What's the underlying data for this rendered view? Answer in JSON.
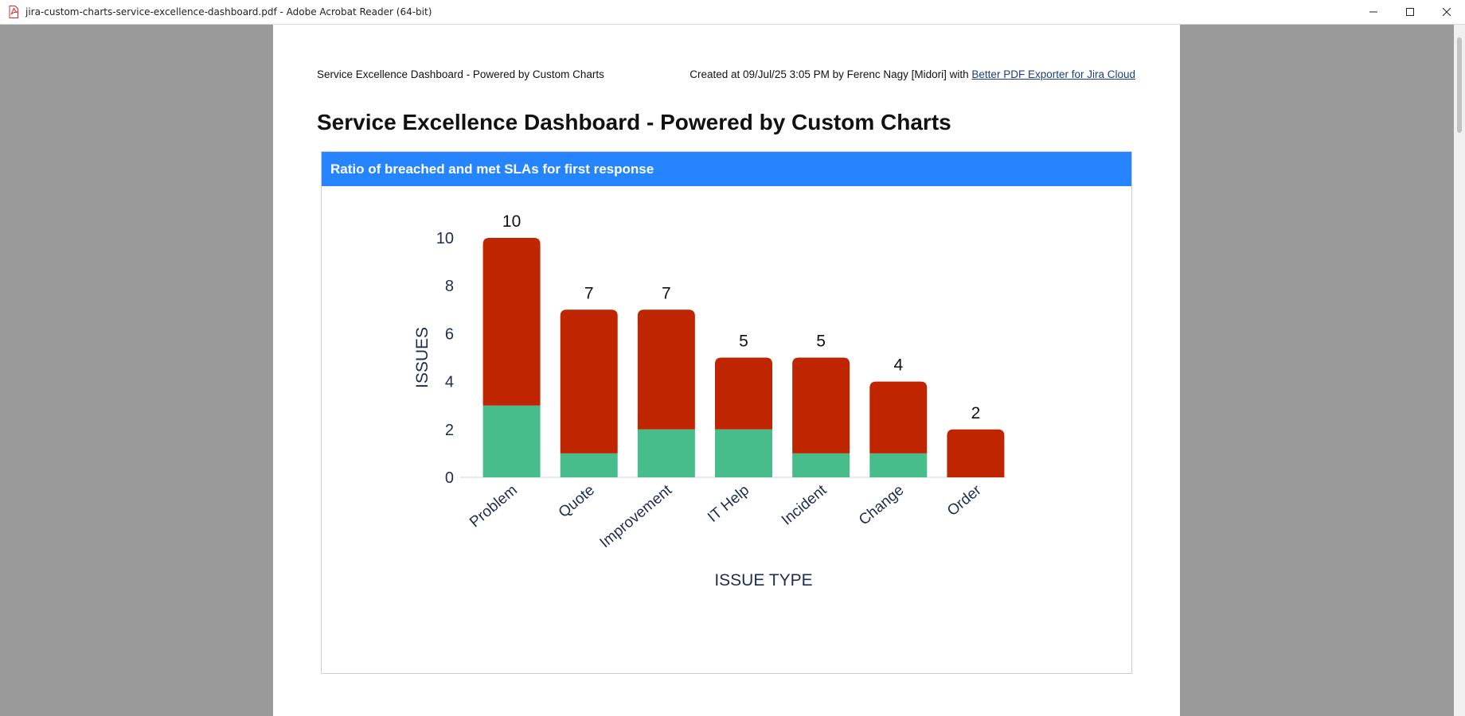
{
  "window": {
    "title": "jira-custom-charts-service-excellence-dashboard.pdf - Adobe Acrobat Reader (64-bit)"
  },
  "page_header": {
    "left": "Service Excellence Dashboard - Powered by Custom Charts",
    "right_prefix": "Created at 09/Jul/25 3:05 PM by Ferenc Nagy [Midori] with ",
    "right_link": "Better PDF Exporter for Jira Cloud"
  },
  "page_title": "Service Excellence Dashboard - Powered by Custom Charts",
  "panel": {
    "title": "Ratio of breached and met SLAs for first response"
  },
  "colors": {
    "panel_header": "#2684ff",
    "breached": "#bf2600",
    "met": "#47bd8b",
    "axis_text": "#1e2c4f"
  },
  "chart_data": {
    "type": "bar",
    "stacked": true,
    "categories": [
      "Problem",
      "Quote",
      "Improvement",
      "IT Help",
      "Incident",
      "Change",
      "Order"
    ],
    "series": [
      {
        "values": [
          3,
          1,
          2,
          2,
          1,
          1,
          0
        ],
        "color": "#47bd8b"
      },
      {
        "values": [
          7,
          6,
          5,
          3,
          4,
          3,
          2
        ],
        "color": "#bf2600"
      }
    ],
    "totals": [
      10,
      7,
      7,
      5,
      5,
      4,
      2
    ],
    "xlabel": "ISSUE TYPE",
    "ylabel": "ISSUES",
    "yticks": [
      0,
      2,
      4,
      6,
      8,
      10
    ],
    "ylim": [
      0,
      10
    ],
    "grid": false,
    "legend": "none"
  }
}
